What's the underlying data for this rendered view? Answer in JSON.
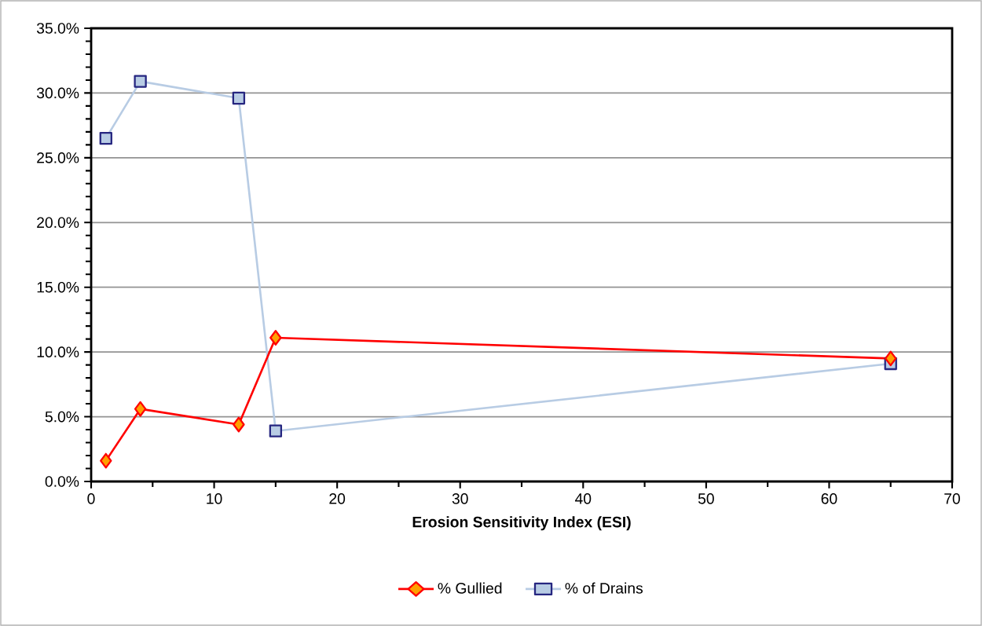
{
  "chart_data": {
    "type": "line",
    "xlabel": "Erosion Sensitivity Index (ESI)",
    "x": [
      1.2,
      4,
      12,
      15,
      65
    ],
    "series": [
      {
        "name": "% Gullied",
        "color": "#ff0000",
        "marker": "diamond",
        "values": [
          1.6,
          5.6,
          4.4,
          11.1,
          9.5
        ]
      },
      {
        "name": "% of Drains",
        "color": "#b8cce4",
        "marker": "square",
        "values": [
          26.5,
          30.9,
          29.6,
          3.9,
          9.1
        ]
      }
    ],
    "xlim": [
      0,
      70
    ],
    "xticks": [
      0,
      10,
      20,
      30,
      40,
      50,
      60,
      70
    ],
    "ylim": [
      0,
      35
    ],
    "yticks": [
      {
        "value": 0,
        "label": "0.0%"
      },
      {
        "value": 5,
        "label": "5.0%"
      },
      {
        "value": 10,
        "label": "10.0%"
      },
      {
        "value": 15,
        "label": "15.0%"
      },
      {
        "value": 20,
        "label": "20.0%"
      },
      {
        "value": 25,
        "label": "25.0%"
      },
      {
        "value": 30,
        "label": "30.0%"
      },
      {
        "value": 35,
        "label": "35.0%"
      }
    ],
    "grid": "y",
    "legend": "bottom",
    "line_style": "solid"
  }
}
